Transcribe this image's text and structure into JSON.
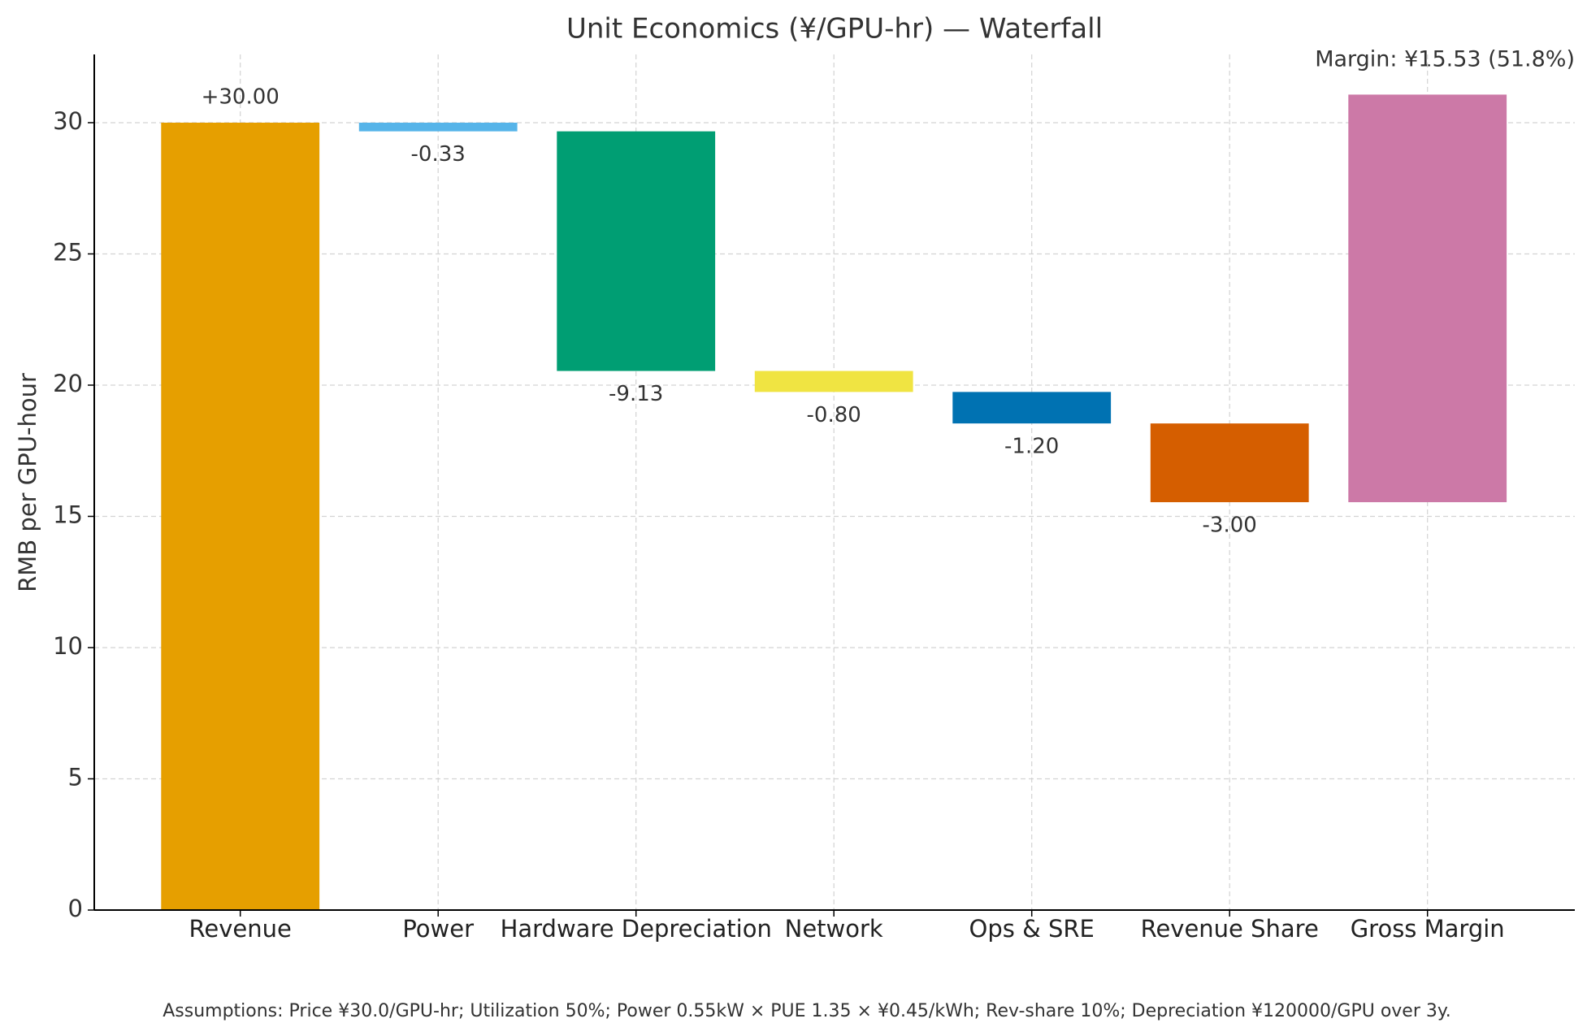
{
  "chart_data": {
    "type": "waterfall",
    "title": "Unit Economics (¥/GPU-hr) — Waterfall",
    "annotation": "Margin: ¥15.53 (51.8%)",
    "footnote": "Assumptions: Price ¥30.0/GPU-hr; Utilization 50%; Power 0.55kW × PUE 1.35 × ¥0.45/kWh; Rev-share 10%; Depreciation ¥120000/GPU over 3y.",
    "ylabel": "RMB per GPU-hour",
    "categories": [
      "Revenue",
      "Power",
      "Hardware Depreciation",
      "Network",
      "Ops & SRE",
      "Revenue Share",
      "Gross Margin"
    ],
    "values": [
      30.0,
      -0.33,
      -9.13,
      -0.8,
      -1.2,
      -3.0,
      15.53
    ],
    "value_labels": [
      "+30.00",
      "-0.33",
      "-9.13",
      "-0.80",
      "-1.20",
      "-3.00",
      null
    ],
    "colors": [
      "#E69F00",
      "#56B4E9",
      "#009E73",
      "#F0E442",
      "#0072B2",
      "#D55E00",
      "#CC79A7"
    ],
    "ylim": [
      0,
      32.6
    ],
    "yticks": [
      0,
      5,
      10,
      15,
      20,
      25,
      30
    ],
    "grid": true
  }
}
